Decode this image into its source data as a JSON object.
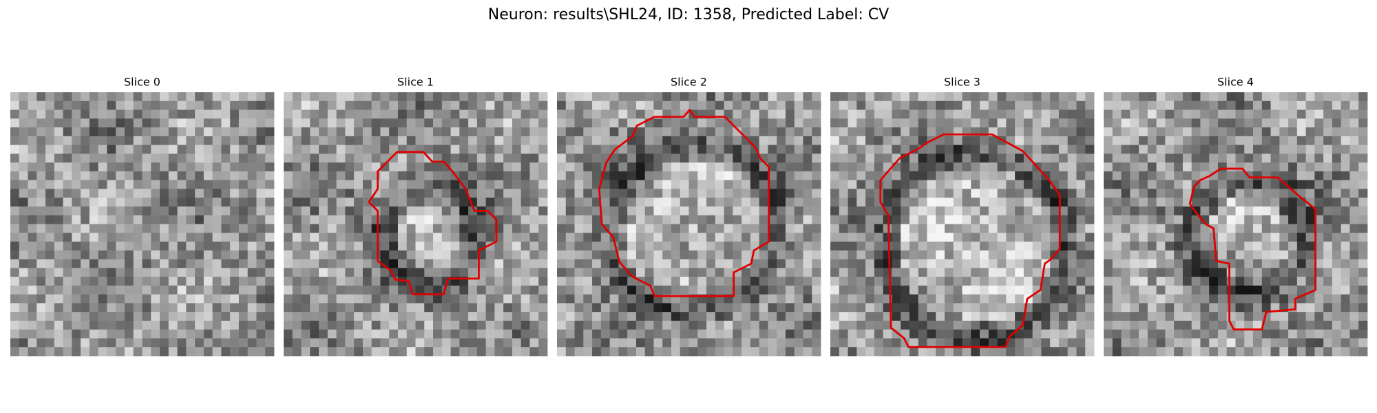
{
  "title": "Neuron: results\\SHL24, ID: 1358, Predicted Label: CV",
  "panels": [
    {
      "title": "Slice 0"
    },
    {
      "title": "Slice 1"
    },
    {
      "title": "Slice 2"
    },
    {
      "title": "Slice 3"
    },
    {
      "title": "Slice 4"
    }
  ]
}
